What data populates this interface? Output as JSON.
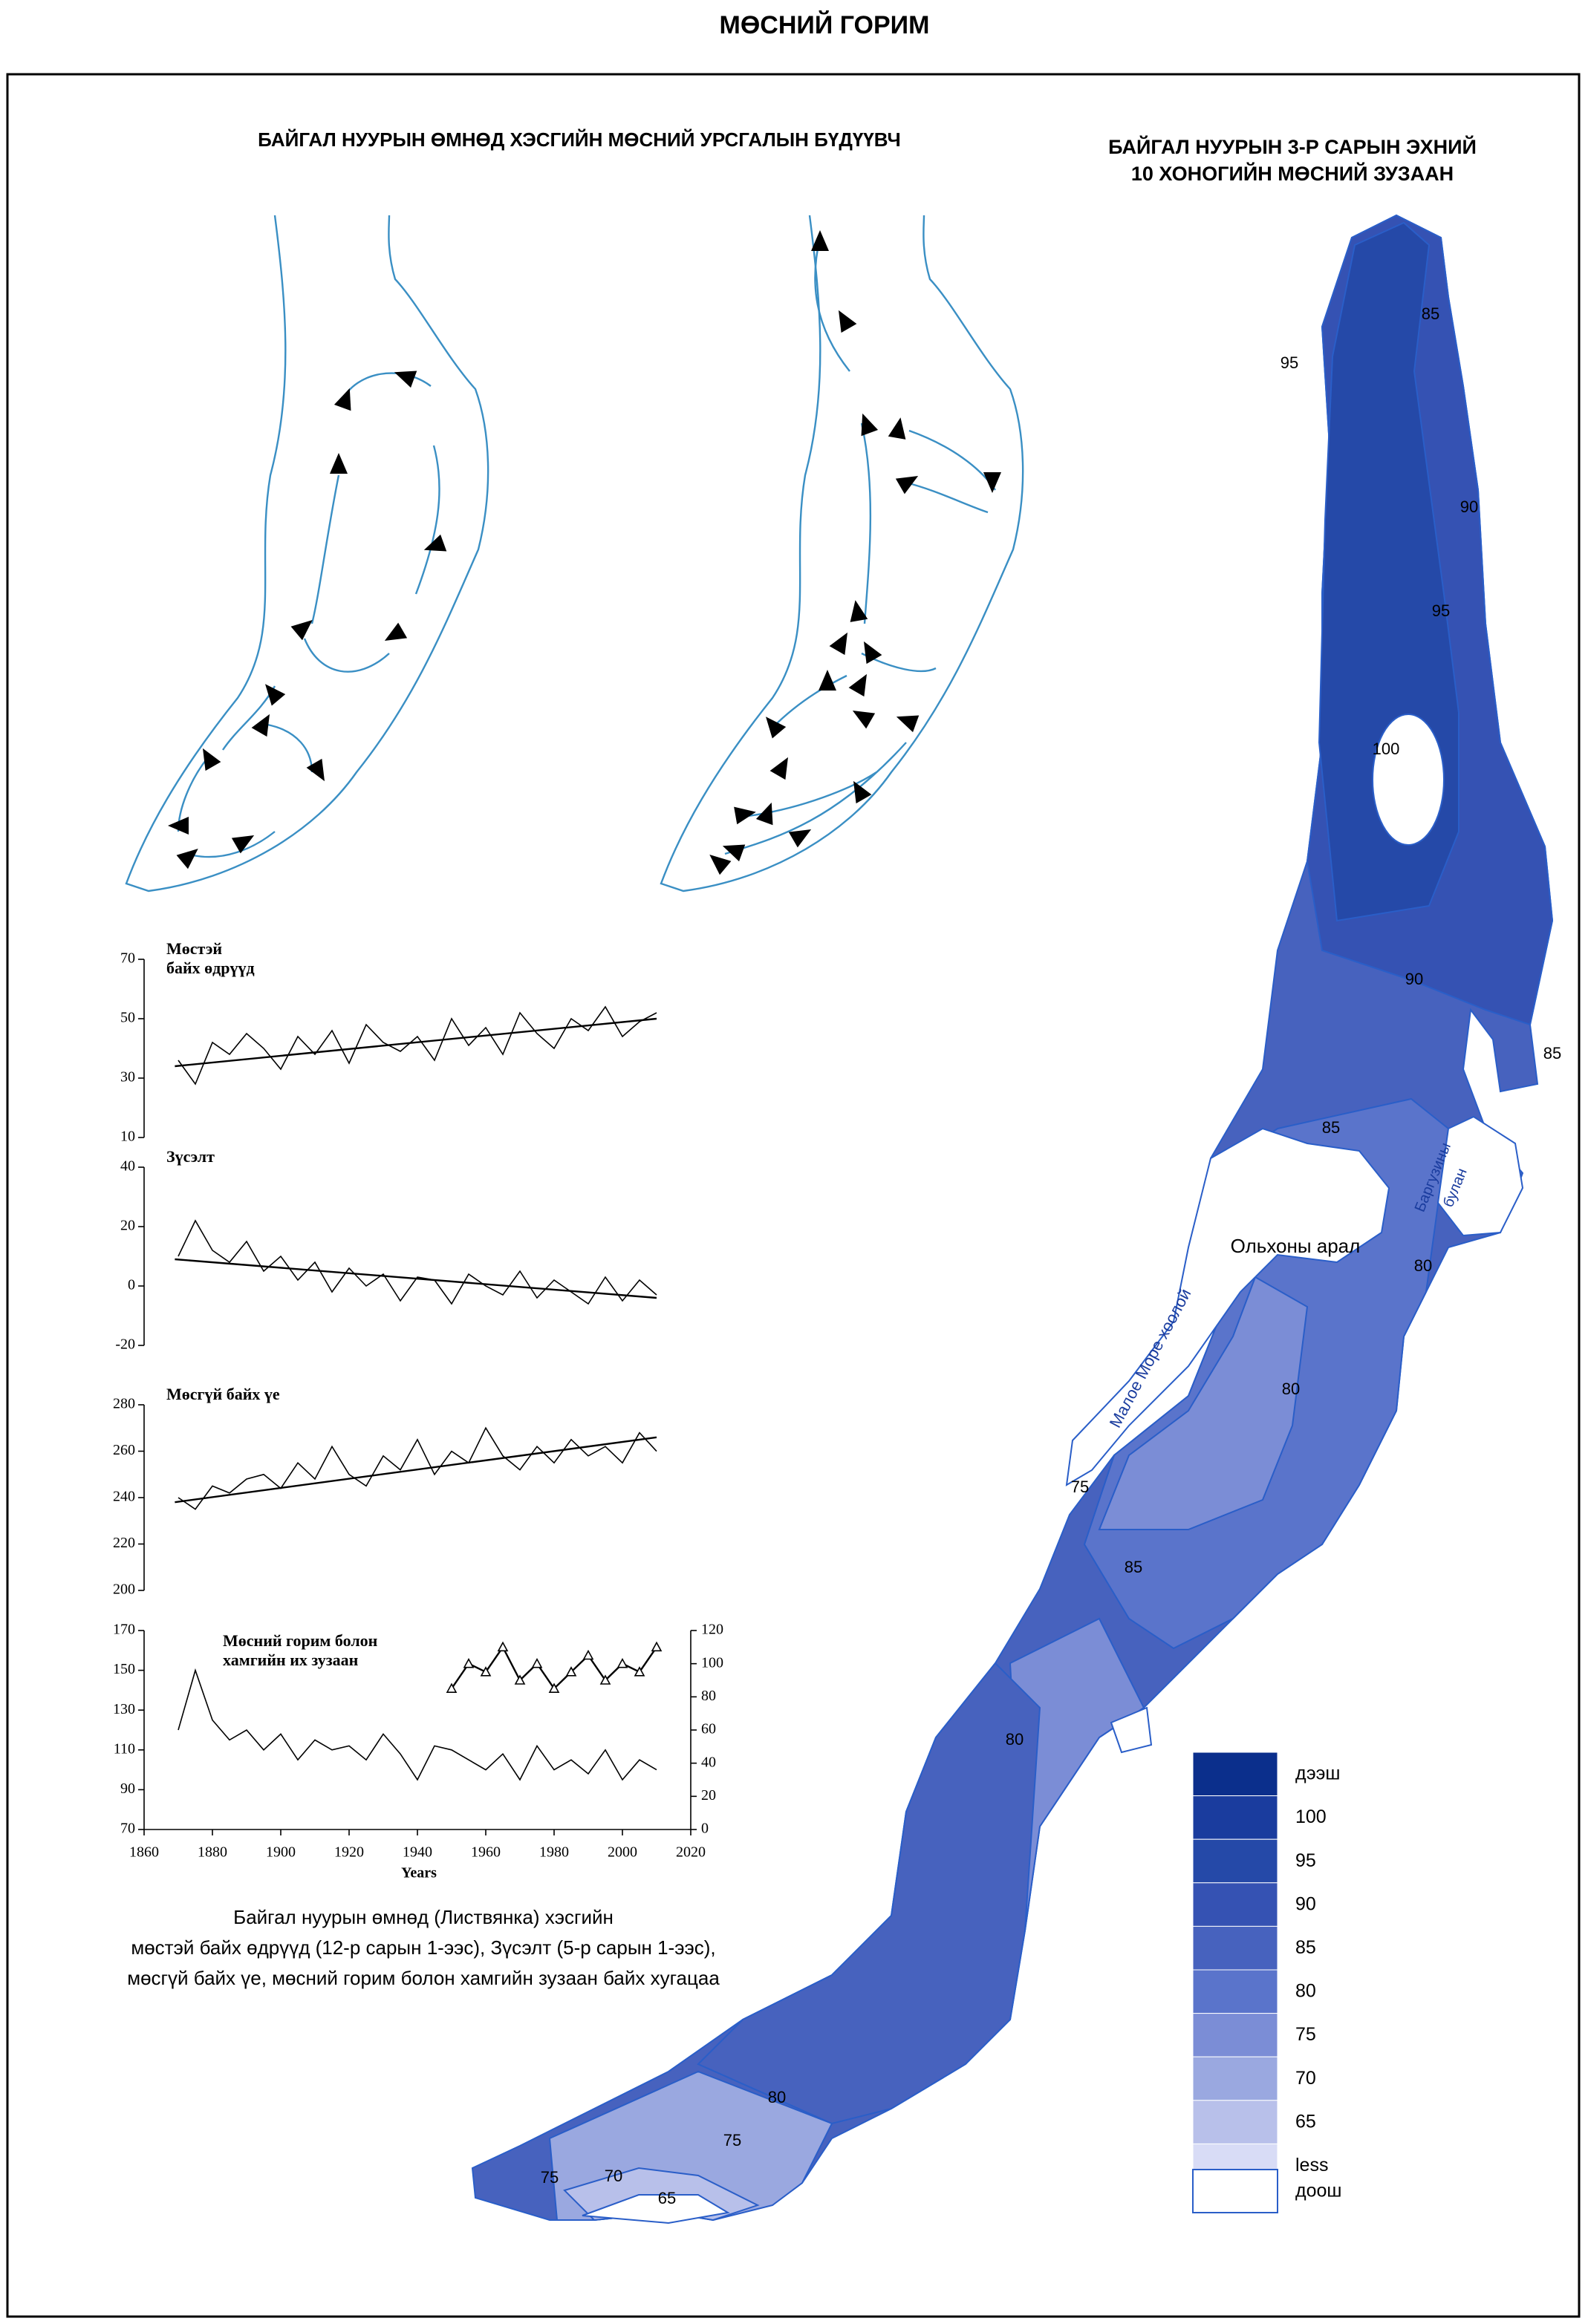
{
  "title": "МӨСНИЙ ГОРИМ",
  "left_title": "БАЙГАЛ НУУРЫН ӨМНӨД ХЭСГИЙН МӨСНИЙ УРСГАЛЫН БҮДҮҮВЧ",
  "right_title": [
    "БАЙГАЛ НУУРЫН 3-Р САРЫН ЭХНИЙ",
    "10 ХОНОГИЙН МӨСНИЙ ЗУЗААН"
  ],
  "chart_data": [
    {
      "type": "line",
      "title": [
        "Мөстэй",
        "байх өдрүүд"
      ],
      "xlim": [
        1860,
        2020
      ],
      "ylim": [
        10,
        70
      ],
      "yticks": [
        10,
        30,
        50,
        70
      ],
      "series": [
        {
          "color": "#000000",
          "x": [
            1870,
            1875,
            1880,
            1885,
            1890,
            1895,
            1900,
            1905,
            1910,
            1915,
            1920,
            1925,
            1930,
            1935,
            1940,
            1945,
            1950,
            1955,
            1960,
            1965,
            1970,
            1975,
            1980,
            1985,
            1990,
            1995,
            2000,
            2005,
            2010
          ],
          "values": [
            36,
            28,
            42,
            38,
            45,
            40,
            33,
            44,
            38,
            46,
            35,
            48,
            42,
            39,
            44,
            36,
            50,
            41,
            47,
            38,
            52,
            45,
            40,
            50,
            46,
            54,
            44,
            49,
            52
          ]
        },
        {
          "color": "#000000",
          "x": [
            1869,
            2010
          ],
          "values": [
            34,
            50
          ]
        }
      ]
    },
    {
      "type": "line",
      "title": [
        "Зүсэлт"
      ],
      "xlim": [
        1860,
        2020
      ],
      "ylim": [
        -20,
        40
      ],
      "yticks": [
        -20,
        0,
        20,
        40
      ],
      "series": [
        {
          "color": "#000000",
          "x": [
            1870,
            1875,
            1880,
            1885,
            1890,
            1895,
            1900,
            1905,
            1910,
            1915,
            1920,
            1925,
            1930,
            1935,
            1940,
            1945,
            1950,
            1955,
            1960,
            1965,
            1970,
            1975,
            1980,
            1985,
            1990,
            1995,
            2000,
            2005,
            2010
          ],
          "values": [
            10,
            22,
            12,
            8,
            15,
            5,
            10,
            2,
            8,
            -2,
            6,
            0,
            4,
            -5,
            3,
            2,
            -6,
            4,
            0,
            -3,
            5,
            -4,
            2,
            -2,
            -6,
            3,
            -5,
            2,
            -3
          ]
        },
        {
          "color": "#000000",
          "x": [
            1869,
            2010
          ],
          "values": [
            9,
            -4
          ]
        }
      ]
    },
    {
      "type": "line",
      "title": [
        "Мөсгүй байх үе"
      ],
      "xlim": [
        1860,
        2020
      ],
      "ylim": [
        200,
        280
      ],
      "yticks": [
        200,
        220,
        240,
        260,
        280
      ],
      "series": [
        {
          "color": "#000000",
          "x": [
            1870,
            1875,
            1880,
            1885,
            1890,
            1895,
            1900,
            1905,
            1910,
            1915,
            1920,
            1925,
            1930,
            1935,
            1940,
            1945,
            1950,
            1955,
            1960,
            1965,
            1970,
            1975,
            1980,
            1985,
            1990,
            1995,
            2000,
            2005,
            2010
          ],
          "values": [
            240,
            235,
            245,
            242,
            248,
            250,
            244,
            255,
            248,
            262,
            250,
            245,
            258,
            252,
            265,
            250,
            260,
            255,
            270,
            258,
            252,
            262,
            255,
            265,
            258,
            262,
            255,
            268,
            260
          ]
        },
        {
          "color": "#000000",
          "x": [
            1869,
            2010
          ],
          "values": [
            238,
            266
          ]
        }
      ]
    },
    {
      "type": "line",
      "title": [
        "Мөсний горим болон",
        "хамгийн их зузаан"
      ],
      "xlabel": "Years",
      "xlim": [
        1860,
        2020
      ],
      "xticks": [
        1860,
        1880,
        1900,
        1920,
        1940,
        1960,
        1980,
        2000,
        2020
      ],
      "ylim": [
        70,
        170
      ],
      "yticks": [
        70,
        90,
        110,
        130,
        150,
        170
      ],
      "y2lim": [
        0,
        120
      ],
      "y2ticks": [
        0,
        20,
        40,
        60,
        80,
        100,
        120
      ],
      "series": [
        {
          "color": "#000000",
          "x": [
            1870,
            1875,
            1880,
            1885,
            1890,
            1895,
            1900,
            1905,
            1910,
            1915,
            1920,
            1925,
            1930,
            1935,
            1940,
            1945,
            1950,
            1955,
            1960,
            1965,
            1970,
            1975,
            1980,
            1985,
            1990,
            1995,
            2000,
            2005,
            2010
          ],
          "values": [
            120,
            150,
            125,
            115,
            120,
            110,
            118,
            105,
            115,
            110,
            112,
            105,
            118,
            108,
            95,
            112,
            110,
            105,
            100,
            108,
            95,
            112,
            100,
            105,
            98,
            110,
            95,
            105,
            100
          ]
        },
        {
          "color": "#000000",
          "axis": "y2",
          "marker": "triangle",
          "x": [
            1950,
            1955,
            1960,
            1965,
            1970,
            1975,
            1980,
            1985,
            1990,
            1995,
            2000,
            2005,
            2010
          ],
          "values": [
            85,
            100,
            95,
            110,
            90,
            100,
            85,
            95,
            105,
            90,
            100,
            95,
            110
          ]
        }
      ]
    }
  ],
  "caption": [
    "Байгал нуурын өмнөд (Листвянка) хэсгийн",
    "мөстэй байх өдрүүд (12-р сарын 1-ээс), Зүсэлт  (5-р сарын 1-ээс),",
    "мөсгүй байх үе, мөсний горим болон хамгийн зузаан байх хугацаа"
  ],
  "map": {
    "contour_labels": [
      95,
      85,
      90,
      95,
      100,
      90,
      85,
      85,
      80,
      80,
      75,
      85,
      80,
      80,
      75,
      75,
      70,
      65
    ],
    "island": "Ольхоны арал",
    "strait": "Малое Море хоолой",
    "bay": [
      "Баргузины",
      "булан"
    ]
  },
  "legend": {
    "items": [
      "дээш",
      100,
      95,
      90,
      85,
      80,
      75,
      70,
      65,
      "less"
    ],
    "colors": [
      "#0b2f8c",
      "#1a3c9e",
      "#2549a8",
      "#3552b3",
      "#4762be",
      "#5a74cb",
      "#7b8dd6",
      "#9aa8e0",
      "#b8c0ea",
      "#d8dcf6"
    ],
    "blank": "доош"
  }
}
